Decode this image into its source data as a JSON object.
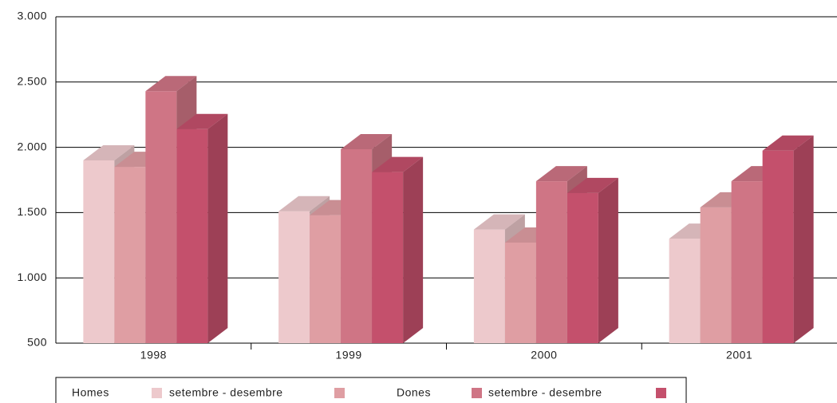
{
  "chart_data": {
    "type": "bar3d",
    "categories": [
      "1998",
      "1999",
      "2000",
      "2001"
    ],
    "series": [
      {
        "name": "Homes",
        "color": "#edc9cc",
        "values": [
          1900,
          1510,
          1370,
          1300
        ]
      },
      {
        "name": "setembre - desembre",
        "color": "#df9ea3",
        "values": [
          1850,
          1480,
          1270,
          1540
        ]
      },
      {
        "name": "Dones",
        "color": "#cf7585",
        "values": [
          2430,
          1985,
          1740,
          1740
        ]
      },
      {
        "name": "setembre - desembre",
        "color": "#c4506c",
        "values": [
          2140,
          1810,
          1650,
          1975
        ]
      }
    ],
    "ylim": [
      500,
      3000
    ],
    "yticks": [
      {
        "value": 500,
        "label": "500"
      },
      {
        "value": 1000,
        "label": "1.000"
      },
      {
        "value": 1500,
        "label": "1.500"
      },
      {
        "value": 2000,
        "label": "2.000"
      },
      {
        "value": 2500,
        "label": "2.500"
      },
      {
        "value": 3000,
        "label": "3.000"
      }
    ],
    "grid": true
  }
}
